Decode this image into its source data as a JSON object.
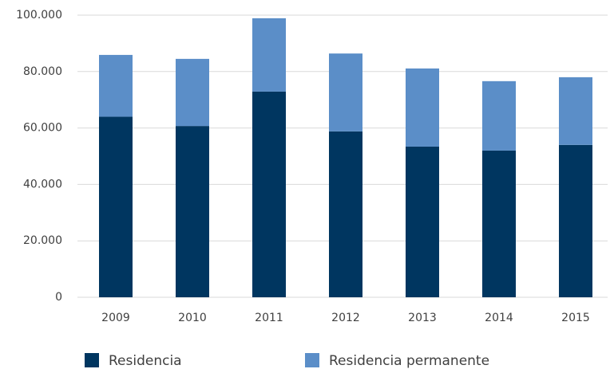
{
  "chart_data": {
    "type": "stacked_bar",
    "categories": [
      "2009",
      "2010",
      "2011",
      "2012",
      "2013",
      "2014",
      "2015"
    ],
    "series": [
      {
        "name": "Residencia",
        "color": "#003660",
        "values": [
          64000,
          60700,
          72900,
          58800,
          53400,
          52000,
          54000
        ]
      },
      {
        "name": "Residencia permanente",
        "color": "#5b8ec8",
        "values": [
          21900,
          23800,
          26000,
          27600,
          27700,
          24600,
          24000
        ]
      }
    ],
    "ylim": [
      0,
      100000
    ],
    "yticks": [
      0,
      {
        "value": 20000,
        "label": "20.000"
      },
      {
        "value": 40000,
        "label": "40.000"
      },
      {
        "value": 60000,
        "label": "60.000"
      },
      {
        "value": 80000,
        "label": "80.000"
      },
      {
        "value": 100000,
        "label": "100.000"
      }
    ],
    "grid": true,
    "legend": "bottom"
  }
}
